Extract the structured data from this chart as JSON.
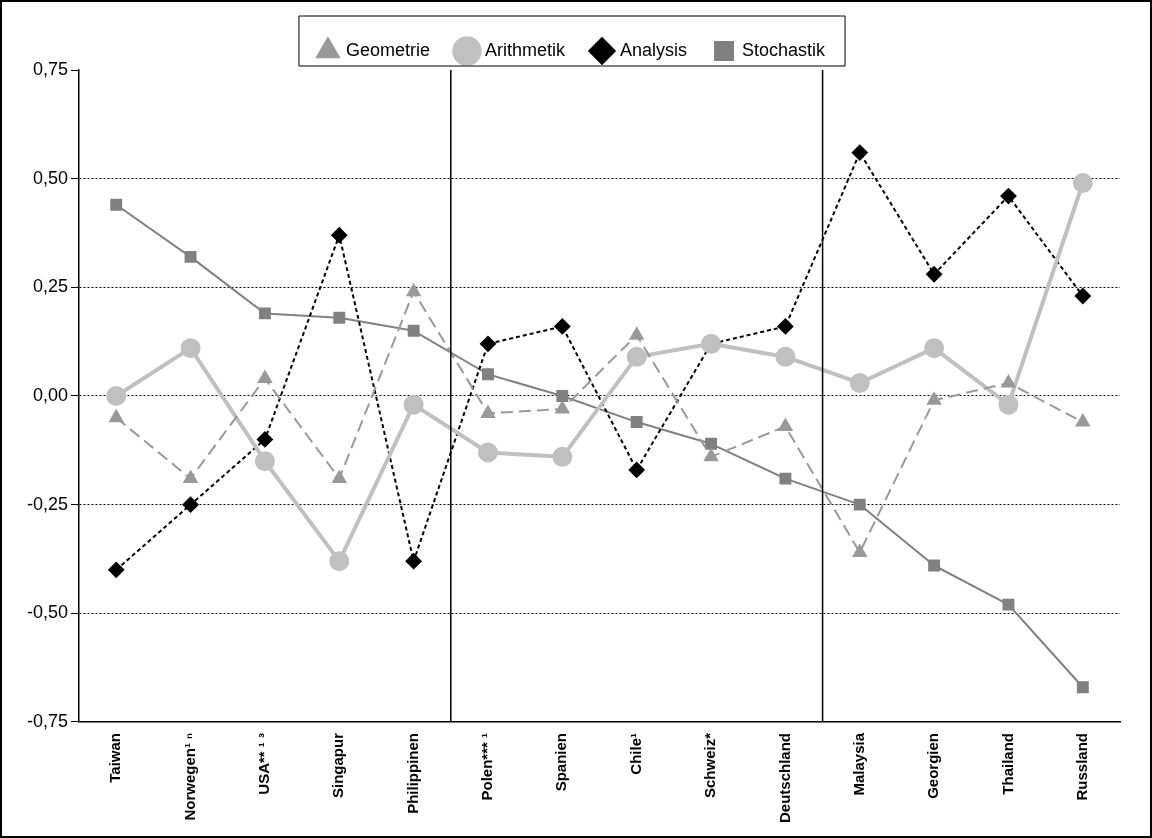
{
  "chart_data": {
    "type": "line",
    "categories": [
      "Taiwan",
      "Norwegen¹ ⁿ",
      "USA** ¹ ³",
      "Singapur",
      "Philippinen",
      "Polen*** ¹",
      "Spanien",
      "Chile¹",
      "Schweiz*",
      "Deutschland",
      "Malaysia",
      "Georgien",
      "Thailand",
      "Russland"
    ],
    "series": [
      {
        "name": "Geometrie",
        "color": "#999999",
        "marker": "triangle",
        "line_style": "dashed",
        "values": [
          -0.05,
          -0.19,
          0.04,
          -0.19,
          0.24,
          -0.04,
          -0.03,
          0.14,
          -0.14,
          -0.07,
          -0.36,
          -0.01,
          0.03,
          -0.06
        ]
      },
      {
        "name": "Arithmetik",
        "color": "#c0c0c0",
        "marker": "circle",
        "line_style": "solid",
        "values": [
          0.0,
          0.11,
          -0.15,
          -0.38,
          -0.02,
          -0.13,
          -0.14,
          0.09,
          0.12,
          0.09,
          0.03,
          0.11,
          -0.02,
          0.49
        ]
      },
      {
        "name": "Analysis",
        "color": "#000000",
        "marker": "diamond",
        "line_style": "dotted",
        "values": [
          -0.4,
          -0.25,
          -0.1,
          0.37,
          -0.38,
          0.12,
          0.16,
          -0.17,
          0.12,
          0.16,
          0.56,
          0.28,
          0.46,
          0.23
        ]
      },
      {
        "name": "Stochastik",
        "color": "#808080",
        "marker": "square",
        "line_style": "solid",
        "values": [
          0.44,
          0.32,
          0.19,
          0.18,
          0.15,
          0.05,
          0.0,
          -0.06,
          -0.11,
          -0.19,
          -0.25,
          -0.39,
          -0.48,
          -0.67
        ]
      }
    ],
    "ylim": [
      -0.75,
      0.75
    ],
    "yticks": [
      {
        "value": -0.75,
        "label": "-0,75"
      },
      {
        "value": -0.5,
        "label": "-0,50"
      },
      {
        "value": -0.25,
        "label": "-0,25"
      },
      {
        "value": 0,
        "label": "0,00"
      },
      {
        "value": 0.25,
        "label": "0,25"
      },
      {
        "value": 0.5,
        "label": "0,50"
      },
      {
        "value": 0.75,
        "label": "0,75"
      }
    ],
    "grid": "y",
    "legend": "top"
  }
}
